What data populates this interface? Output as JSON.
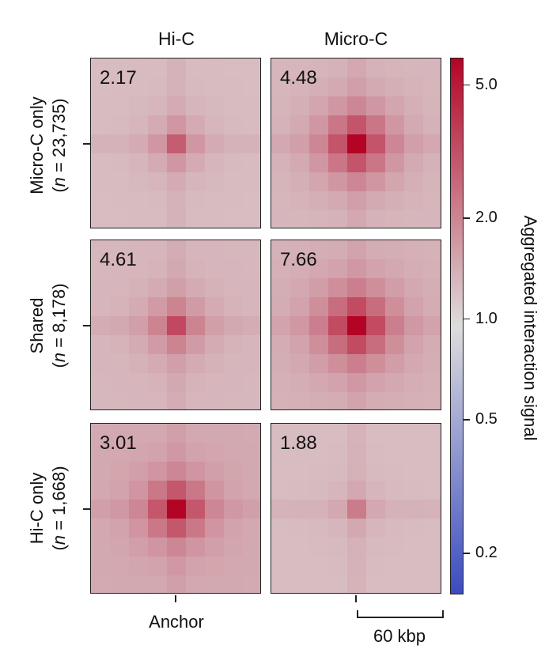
{
  "chart_data": {
    "type": "heatmap",
    "columns": [
      "Hi-C",
      "Micro-C"
    ],
    "rows": [
      {
        "label": "Micro-C only",
        "n_prefix": "n",
        "n_suffix": " = 23,735)",
        "values": {
          "Hi-C": "2.17",
          "Micro-C": "4.48"
        }
      },
      {
        "label": "Shared",
        "n_prefix": "n",
        "n_suffix": " = 8,178)",
        "values": {
          "Hi-C": "4.61",
          "Micro-C": "7.66"
        }
      },
      {
        "label": "Hi-C only",
        "n_prefix": "n",
        "n_suffix": " = 1,668)",
        "values": {
          "Hi-C": "3.01",
          "Micro-C": "1.88"
        }
      }
    ],
    "grid_size": 9,
    "center_index": 4,
    "panels": [
      {
        "row": 0,
        "col": 0,
        "value_label": "2.17",
        "center": 2.6,
        "falloff": 1.4,
        "background": 1.25
      },
      {
        "row": 0,
        "col": 1,
        "value_label": "4.48",
        "center": 5.6,
        "falloff": 1.05,
        "background": 1.3
      },
      {
        "row": 1,
        "col": 0,
        "value_label": "4.61",
        "center": 3.1,
        "falloff": 1.15,
        "background": 1.3
      },
      {
        "row": 1,
        "col": 1,
        "value_label": "7.66",
        "center": 5.9,
        "falloff": 1.0,
        "background": 1.35
      },
      {
        "row": 2,
        "col": 0,
        "value_label": "3.01",
        "center": 5.7,
        "falloff": 1.2,
        "background": 1.45
      },
      {
        "row": 2,
        "col": 1,
        "value_label": "1.88",
        "center": 2.0,
        "falloff": 1.8,
        "background": 1.25
      }
    ],
    "x_label": "Anchor",
    "scale_bar_label": "60 kbp",
    "colorbar": {
      "title": "Aggregated interaction signal",
      "scale": "log",
      "range": [
        0.15,
        6.0
      ],
      "ticks": [
        {
          "value": 5.0,
          "label": "5.0"
        },
        {
          "value": 2.0,
          "label": "2.0"
        },
        {
          "value": 1.0,
          "label": "1.0"
        },
        {
          "value": 0.5,
          "label": "0.5"
        },
        {
          "value": 0.2,
          "label": "0.2"
        }
      ],
      "colormap": [
        "#3b4cc0",
        "#dddcdc",
        "#b40426"
      ]
    }
  }
}
